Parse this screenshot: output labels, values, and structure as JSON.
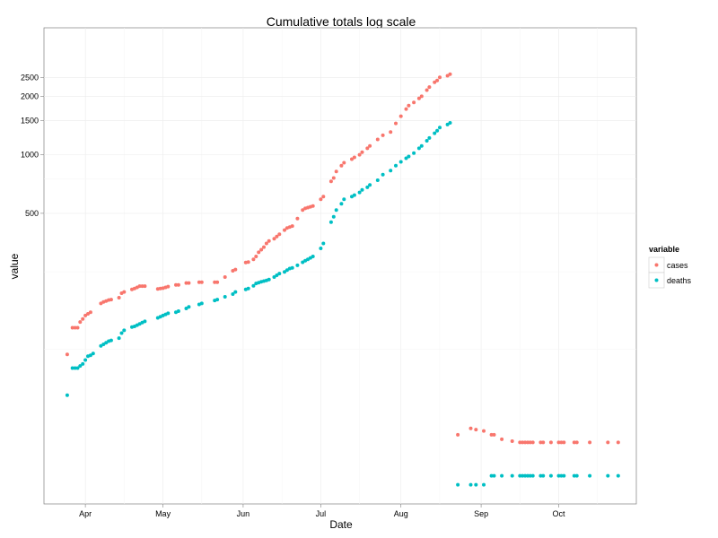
{
  "chart_data": {
    "type": "scatter",
    "title": "Cumulative totals log scale",
    "xlabel": "Date",
    "ylabel": "value",
    "x_scale": "date",
    "y_scale": "log10",
    "xlim": [
      "2020-03-16",
      "2020-10-31"
    ],
    "ylim": [
      16,
      4500
    ],
    "x_ticks": [
      {
        "date": "2020-04-01",
        "label": "Apr"
      },
      {
        "date": "2020-05-01",
        "label": "May"
      },
      {
        "date": "2020-06-01",
        "label": "Jun"
      },
      {
        "date": "2020-07-01",
        "label": "Jul"
      },
      {
        "date": "2020-08-01",
        "label": "Aug"
      },
      {
        "date": "2020-09-01",
        "label": "Sep"
      },
      {
        "date": "2020-10-01",
        "label": "Oct"
      }
    ],
    "y_ticks": [
      500,
      1000,
      1500,
      2000,
      2500
    ],
    "grid": true,
    "legend": {
      "title": "variable",
      "position": "right"
    },
    "series": [
      {
        "name": "cases",
        "color": "#F8766D",
        "points": [
          [
            "2020-03-25",
            94
          ],
          [
            "2020-03-27",
            129
          ],
          [
            "2020-03-28",
            129
          ],
          [
            "2020-03-29",
            129
          ],
          [
            "2020-03-30",
            138
          ],
          [
            "2020-03-31",
            143
          ],
          [
            "2020-04-01",
            149
          ],
          [
            "2020-04-02",
            152
          ],
          [
            "2020-04-03",
            155
          ],
          [
            "2020-04-07",
            172
          ],
          [
            "2020-04-08",
            175
          ],
          [
            "2020-04-09",
            177
          ],
          [
            "2020-04-10",
            179
          ],
          [
            "2020-04-11",
            180
          ],
          [
            "2020-04-14",
            184
          ],
          [
            "2020-04-15",
            194
          ],
          [
            "2020-04-16",
            197
          ],
          [
            "2020-04-19",
            203
          ],
          [
            "2020-04-20",
            205
          ],
          [
            "2020-04-21",
            208
          ],
          [
            "2020-04-22",
            211
          ],
          [
            "2020-04-23",
            211
          ],
          [
            "2020-04-24",
            211
          ],
          [
            "2020-04-29",
            204
          ],
          [
            "2020-04-30",
            205
          ],
          [
            "2020-05-01",
            206
          ],
          [
            "2020-05-02",
            208
          ],
          [
            "2020-05-03",
            210
          ],
          [
            "2020-05-06",
            214
          ],
          [
            "2020-05-07",
            214
          ],
          [
            "2020-05-10",
            219
          ],
          [
            "2020-05-11",
            219
          ],
          [
            "2020-05-15",
            221
          ],
          [
            "2020-05-16",
            221
          ],
          [
            "2020-05-21",
            221
          ],
          [
            "2020-05-22",
            221
          ],
          [
            "2020-05-25",
            235
          ],
          [
            "2020-05-28",
            253
          ],
          [
            "2020-05-29",
            257
          ],
          [
            "2020-06-02",
            279
          ],
          [
            "2020-06-03",
            281
          ],
          [
            "2020-06-05",
            290
          ],
          [
            "2020-06-06",
            300
          ],
          [
            "2020-06-07",
            315
          ],
          [
            "2020-06-08",
            325
          ],
          [
            "2020-06-09",
            335
          ],
          [
            "2020-06-10",
            350
          ],
          [
            "2020-06-11",
            360
          ],
          [
            "2020-06-13",
            370
          ],
          [
            "2020-06-14",
            380
          ],
          [
            "2020-06-15",
            390
          ],
          [
            "2020-06-17",
            410
          ],
          [
            "2020-06-18",
            420
          ],
          [
            "2020-06-19",
            425
          ],
          [
            "2020-06-20",
            430
          ],
          [
            "2020-06-22",
            470
          ],
          [
            "2020-06-24",
            520
          ],
          [
            "2020-06-25",
            530
          ],
          [
            "2020-06-26",
            535
          ],
          [
            "2020-06-27",
            540
          ],
          [
            "2020-06-28",
            545
          ],
          [
            "2020-07-01",
            590
          ],
          [
            "2020-07-02",
            610
          ],
          [
            "2020-07-05",
            730
          ],
          [
            "2020-07-06",
            760
          ],
          [
            "2020-07-07",
            820
          ],
          [
            "2020-07-09",
            880
          ],
          [
            "2020-07-10",
            910
          ],
          [
            "2020-07-13",
            950
          ],
          [
            "2020-07-14",
            970
          ],
          [
            "2020-07-16",
            1000
          ],
          [
            "2020-07-17",
            1030
          ],
          [
            "2020-07-19",
            1080
          ],
          [
            "2020-07-20",
            1110
          ],
          [
            "2020-07-23",
            1200
          ],
          [
            "2020-07-25",
            1260
          ],
          [
            "2020-07-28",
            1310
          ],
          [
            "2020-07-30",
            1450
          ],
          [
            "2020-08-01",
            1580
          ],
          [
            "2020-08-03",
            1720
          ],
          [
            "2020-08-04",
            1790
          ],
          [
            "2020-08-06",
            1860
          ],
          [
            "2020-08-08",
            1950
          ],
          [
            "2020-08-09",
            2000
          ],
          [
            "2020-08-11",
            2150
          ],
          [
            "2020-08-12",
            2230
          ],
          [
            "2020-08-14",
            2360
          ],
          [
            "2020-08-15",
            2410
          ],
          [
            "2020-08-16",
            2500
          ],
          [
            "2020-08-19",
            2550
          ],
          [
            "2020-08-20",
            2600
          ]
        ]
      },
      {
        "name": "deaths",
        "color": "#00BFC4",
        "points": [
          [
            "2020-03-25",
            58
          ],
          [
            "2020-03-27",
            80
          ],
          [
            "2020-03-28",
            80
          ],
          [
            "2020-03-29",
            80
          ],
          [
            "2020-03-30",
            82
          ],
          [
            "2020-03-31",
            84
          ],
          [
            "2020-04-01",
            88
          ],
          [
            "2020-04-02",
            92
          ],
          [
            "2020-04-03",
            93
          ],
          [
            "2020-04-04",
            95
          ],
          [
            "2020-04-07",
            104
          ],
          [
            "2020-04-08",
            106
          ],
          [
            "2020-04-09",
            108
          ],
          [
            "2020-04-10",
            110
          ],
          [
            "2020-04-11",
            111
          ],
          [
            "2020-04-14",
            114
          ],
          [
            "2020-04-15",
            121
          ],
          [
            "2020-04-16",
            125
          ],
          [
            "2020-04-19",
            130
          ],
          [
            "2020-04-20",
            131
          ],
          [
            "2020-04-21",
            133
          ],
          [
            "2020-04-22",
            135
          ],
          [
            "2020-04-23",
            137
          ],
          [
            "2020-04-24",
            139
          ],
          [
            "2020-04-29",
            145
          ],
          [
            "2020-04-30",
            147
          ],
          [
            "2020-05-01",
            149
          ],
          [
            "2020-05-02",
            151
          ],
          [
            "2020-05-03",
            153
          ],
          [
            "2020-05-06",
            155
          ],
          [
            "2020-05-07",
            157
          ],
          [
            "2020-05-10",
            162
          ],
          [
            "2020-05-11",
            165
          ],
          [
            "2020-05-15",
            170
          ],
          [
            "2020-05-16",
            172
          ],
          [
            "2020-05-21",
            178
          ],
          [
            "2020-05-22",
            180
          ],
          [
            "2020-05-25",
            186
          ],
          [
            "2020-05-28",
            192
          ],
          [
            "2020-05-29",
            197
          ],
          [
            "2020-06-02",
            203
          ],
          [
            "2020-06-03",
            205
          ],
          [
            "2020-06-05",
            212
          ],
          [
            "2020-06-06",
            218
          ],
          [
            "2020-06-07",
            220
          ],
          [
            "2020-06-08",
            222
          ],
          [
            "2020-06-09",
            224
          ],
          [
            "2020-06-10",
            226
          ],
          [
            "2020-06-11",
            228
          ],
          [
            "2020-06-13",
            235
          ],
          [
            "2020-06-14",
            240
          ],
          [
            "2020-06-15",
            245
          ],
          [
            "2020-06-17",
            250
          ],
          [
            "2020-06-18",
            255
          ],
          [
            "2020-06-19",
            260
          ],
          [
            "2020-06-20",
            262
          ],
          [
            "2020-06-22",
            270
          ],
          [
            "2020-06-24",
            280
          ],
          [
            "2020-06-25",
            285
          ],
          [
            "2020-06-26",
            290
          ],
          [
            "2020-06-27",
            295
          ],
          [
            "2020-06-28",
            300
          ],
          [
            "2020-07-01",
            330
          ],
          [
            "2020-07-02",
            350
          ],
          [
            "2020-07-05",
            450
          ],
          [
            "2020-07-06",
            480
          ],
          [
            "2020-07-07",
            520
          ],
          [
            "2020-07-09",
            560
          ],
          [
            "2020-07-10",
            590
          ],
          [
            "2020-07-13",
            610
          ],
          [
            "2020-07-14",
            620
          ],
          [
            "2020-07-16",
            640
          ],
          [
            "2020-07-17",
            660
          ],
          [
            "2020-07-19",
            680
          ],
          [
            "2020-07-20",
            700
          ],
          [
            "2020-07-23",
            740
          ],
          [
            "2020-07-25",
            790
          ],
          [
            "2020-07-28",
            830
          ],
          [
            "2020-07-30",
            880
          ],
          [
            "2020-08-01",
            920
          ],
          [
            "2020-08-03",
            960
          ],
          [
            "2020-08-04",
            980
          ],
          [
            "2020-08-06",
            1020
          ],
          [
            "2020-08-08",
            1080
          ],
          [
            "2020-08-09",
            1110
          ],
          [
            "2020-08-11",
            1180
          ],
          [
            "2020-08-12",
            1220
          ],
          [
            "2020-08-14",
            1290
          ],
          [
            "2020-08-15",
            1330
          ],
          [
            "2020-08-16",
            1380
          ],
          [
            "2020-08-19",
            1430
          ],
          [
            "2020-08-20",
            1460
          ]
        ]
      }
    ],
    "trailing_points_y_scale": "linear",
    "trailing_points": [
      {
        "series": "cases",
        "points": [
          [
            "2020-08-23",
            26.8
          ],
          [
            "2020-08-28",
            27.8
          ],
          [
            "2020-08-30",
            27.6
          ],
          [
            "2020-09-02",
            27.4
          ],
          [
            "2020-09-05",
            26.8
          ],
          [
            "2020-09-06",
            26.8
          ],
          [
            "2020-09-09",
            26.1
          ],
          [
            "2020-09-13",
            25.8
          ],
          [
            "2020-09-16",
            25.6
          ],
          [
            "2020-09-17",
            25.6
          ],
          [
            "2020-09-18",
            25.6
          ],
          [
            "2020-09-19",
            25.6
          ],
          [
            "2020-09-20",
            25.6
          ],
          [
            "2020-09-21",
            25.6
          ],
          [
            "2020-09-24",
            25.6
          ],
          [
            "2020-09-25",
            25.6
          ],
          [
            "2020-09-28",
            25.6
          ],
          [
            "2020-10-01",
            25.6
          ],
          [
            "2020-10-02",
            25.6
          ],
          [
            "2020-10-03",
            25.6
          ],
          [
            "2020-10-07",
            25.6
          ],
          [
            "2020-10-08",
            25.6
          ],
          [
            "2020-10-13",
            25.6
          ],
          [
            "2020-10-20",
            25.6
          ],
          [
            "2020-10-24",
            25.6
          ]
        ]
      },
      {
        "series": "deaths",
        "points": [
          [
            "2020-08-23",
            19.0
          ],
          [
            "2020-08-28",
            19.0
          ],
          [
            "2020-08-30",
            19.0
          ],
          [
            "2020-09-02",
            19.0
          ],
          [
            "2020-09-05",
            20.4
          ],
          [
            "2020-09-06",
            20.4
          ],
          [
            "2020-09-09",
            20.4
          ],
          [
            "2020-09-13",
            20.4
          ],
          [
            "2020-09-16",
            20.4
          ],
          [
            "2020-09-17",
            20.4
          ],
          [
            "2020-09-18",
            20.4
          ],
          [
            "2020-09-19",
            20.4
          ],
          [
            "2020-09-20",
            20.4
          ],
          [
            "2020-09-21",
            20.4
          ],
          [
            "2020-09-24",
            20.4
          ],
          [
            "2020-09-25",
            20.4
          ],
          [
            "2020-09-28",
            20.4
          ],
          [
            "2020-10-01",
            20.4
          ],
          [
            "2020-10-02",
            20.4
          ],
          [
            "2020-10-03",
            20.4
          ],
          [
            "2020-10-07",
            20.4
          ],
          [
            "2020-10-08",
            20.4
          ],
          [
            "2020-10-13",
            20.4
          ],
          [
            "2020-10-20",
            20.4
          ],
          [
            "2020-10-24",
            20.4
          ]
        ]
      }
    ]
  }
}
